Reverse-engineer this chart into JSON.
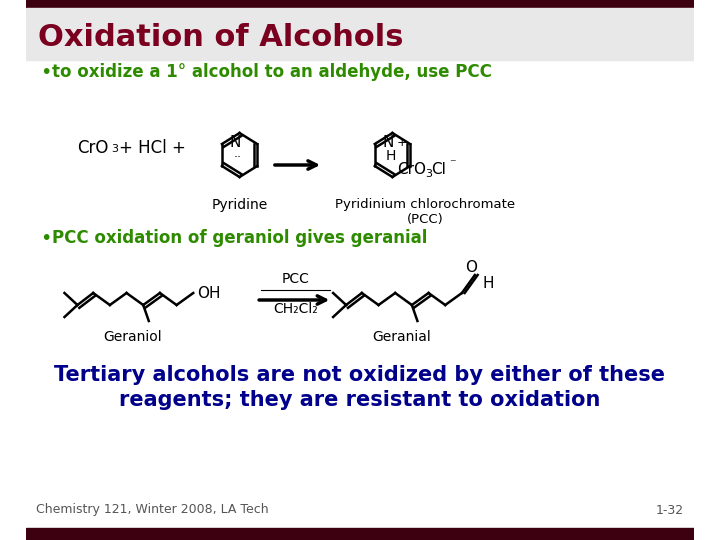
{
  "bg_color": "#ffffff",
  "title_bar_color": "#3d0010",
  "title_text": "Oxidation of Alcohols",
  "title_color": "#7b0020",
  "bullet1_text": "to oxidize a 1° alcohol to an aldehyde, use PCC",
  "bullet2_text": "PCC oxidation of geraniol gives geranial",
  "bullet_color": "#2e8b00",
  "bottom_text_line1": "Tertiary alcohols are not oxidized by either of these",
  "bottom_text_line2": "reagents; they are resistant to oxidation",
  "bottom_text_color": "#00008B",
  "footer_left": "Chemistry 121, Winter 2008, LA Tech",
  "footer_right": "1-32",
  "footer_color": "#555555",
  "top_bar_color": "#3d0010",
  "bottom_bar_color": "#3d0010"
}
